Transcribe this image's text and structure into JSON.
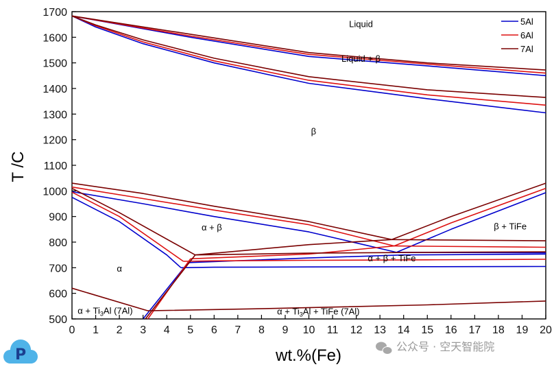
{
  "chart_data": {
    "type": "line",
    "title": "",
    "xlabel": "wt.%(Fe)",
    "ylabel": "T /C",
    "xlim": [
      0,
      20
    ],
    "ylim": [
      500,
      1700
    ],
    "x_ticks": [
      0,
      1,
      2,
      3,
      4,
      5,
      6,
      7,
      8,
      9,
      10,
      11,
      12,
      13,
      14,
      15,
      16,
      17,
      18,
      19,
      20
    ],
    "y_ticks": [
      500,
      600,
      700,
      800,
      900,
      1000,
      1100,
      1200,
      1300,
      1400,
      1500,
      1600,
      1700
    ],
    "legend": {
      "position": "top-right",
      "entries": [
        {
          "name": "5Al",
          "color": "#0000cc"
        },
        {
          "name": "6Al",
          "color": "#dd1111"
        },
        {
          "name": "7Al",
          "color": "#7a0000"
        }
      ]
    },
    "series": [
      {
        "name": "5Al",
        "color": "#0000cc",
        "lines": [
          [
            [
              0,
              1683
            ],
            [
              5,
              1600
            ],
            [
              10,
              1525
            ],
            [
              15,
              1488
            ],
            [
              20,
              1450
            ]
          ],
          [
            [
              0,
              1683
            ],
            [
              1,
              1640
            ],
            [
              3,
              1575
            ],
            [
              6,
              1500
            ],
            [
              10,
              1420
            ],
            [
              15,
              1360
            ],
            [
              20,
              1305
            ]
          ],
          [
            [
              0,
              997
            ],
            [
              3,
              950
            ],
            [
              6,
              900
            ],
            [
              10,
              840
            ],
            [
              13.7,
              760
            ]
          ],
          [
            [
              0,
              975
            ],
            [
              2,
              880
            ],
            [
              4,
              750
            ],
            [
              4.6,
              700
            ]
          ],
          [
            [
              4.6,
              700
            ],
            [
              6,
              702
            ],
            [
              10,
              703
            ],
            [
              15,
              704
            ],
            [
              20,
              705
            ]
          ],
          [
            [
              3,
              500
            ],
            [
              4.9,
              720
            ]
          ],
          [
            [
              4.9,
              720
            ],
            [
              10,
              738
            ],
            [
              14,
              750
            ],
            [
              20,
              753
            ]
          ],
          [
            [
              13.7,
              760
            ],
            [
              16,
              850
            ],
            [
              20,
              993
            ]
          ],
          [
            [
              13.7,
              760
            ],
            [
              20,
              758
            ]
          ]
        ]
      },
      {
        "name": "6Al",
        "color": "#dd1111",
        "lines": [
          [
            [
              0,
              1683
            ],
            [
              5,
              1605
            ],
            [
              10,
              1533
            ],
            [
              15,
              1495
            ],
            [
              20,
              1460
            ]
          ],
          [
            [
              0,
              1683
            ],
            [
              1,
              1645
            ],
            [
              3,
              1582
            ],
            [
              6,
              1508
            ],
            [
              10,
              1432
            ],
            [
              15,
              1375
            ],
            [
              20,
              1335
            ]
          ],
          [
            [
              0,
              1015
            ],
            [
              3,
              970
            ],
            [
              6,
              925
            ],
            [
              10,
              868
            ],
            [
              13.6,
              785
            ]
          ],
          [
            [
              0,
              995
            ],
            [
              2,
              900
            ],
            [
              4.7,
              725
            ]
          ],
          [
            [
              4.7,
              725
            ],
            [
              6,
              727
            ],
            [
              10,
              729
            ],
            [
              15,
              731
            ],
            [
              20,
              733
            ]
          ],
          [
            [
              3.2,
              500
            ],
            [
              5,
              735
            ]
          ],
          [
            [
              5,
              735
            ],
            [
              10,
              753
            ],
            [
              13.6,
              785
            ]
          ],
          [
            [
              13.6,
              785
            ],
            [
              16,
              875
            ],
            [
              20,
              1010
            ]
          ],
          [
            [
              13.6,
              785
            ],
            [
              20,
              780
            ]
          ]
        ]
      },
      {
        "name": "7Al",
        "color": "#7a0000",
        "lines": [
          [
            [
              0,
              1683
            ],
            [
              5,
              1612
            ],
            [
              10,
              1540
            ],
            [
              15,
              1500
            ],
            [
              20,
              1472
            ]
          ],
          [
            [
              0,
              1683
            ],
            [
              1,
              1648
            ],
            [
              3,
              1590
            ],
            [
              6,
              1518
            ],
            [
              10,
              1446
            ],
            [
              15,
              1395
            ],
            [
              20,
              1365
            ]
          ],
          [
            [
              0,
              1030
            ],
            [
              3,
              990
            ],
            [
              6,
              940
            ],
            [
              10,
              880
            ],
            [
              13.5,
              810
            ]
          ],
          [
            [
              0,
              1010
            ],
            [
              2,
              915
            ],
            [
              5.2,
              750
            ]
          ],
          [
            [
              5.2,
              750
            ],
            [
              10,
              790
            ],
            [
              13.5,
              810
            ]
          ],
          [
            [
              3.1,
              500
            ],
            [
              5.2,
              750
            ]
          ],
          [
            [
              5.2,
              750
            ],
            [
              10,
              757
            ],
            [
              15,
              760
            ],
            [
              20,
              762
            ]
          ],
          [
            [
              13.5,
              810
            ],
            [
              16,
              900
            ],
            [
              20,
              1030
            ]
          ],
          [
            [
              13.5,
              810
            ],
            [
              20,
              805
            ]
          ],
          [
            [
              0,
              620
            ],
            [
              3.2,
              532
            ],
            [
              8,
              540
            ],
            [
              15,
              555
            ],
            [
              20,
              570
            ]
          ]
        ]
      }
    ],
    "annotations": [
      {
        "text": "Liquid",
        "x": 12.2,
        "y": 1640
      },
      {
        "text": "Liquid + β",
        "x": 12.2,
        "y": 1505
      },
      {
        "text": "β",
        "x": 10.2,
        "y": 1220
      },
      {
        "text": "α + β",
        "x": 5.9,
        "y": 845
      },
      {
        "text": "α",
        "x": 2.0,
        "y": 685
      },
      {
        "text": "β + TiFe",
        "x": 18.5,
        "y": 850
      },
      {
        "text": "α + β + TiFe",
        "x": 13.5,
        "y": 725
      },
      {
        "text": "α + Ti3Al (7Al)",
        "x": 1.4,
        "y": 520
      },
      {
        "text": "α + Ti3Al + TiFe (7Al)",
        "x": 10.4,
        "y": 518
      }
    ]
  },
  "watermark": {
    "logo_letter": "P",
    "text": "公众号 · 空天智能院"
  }
}
